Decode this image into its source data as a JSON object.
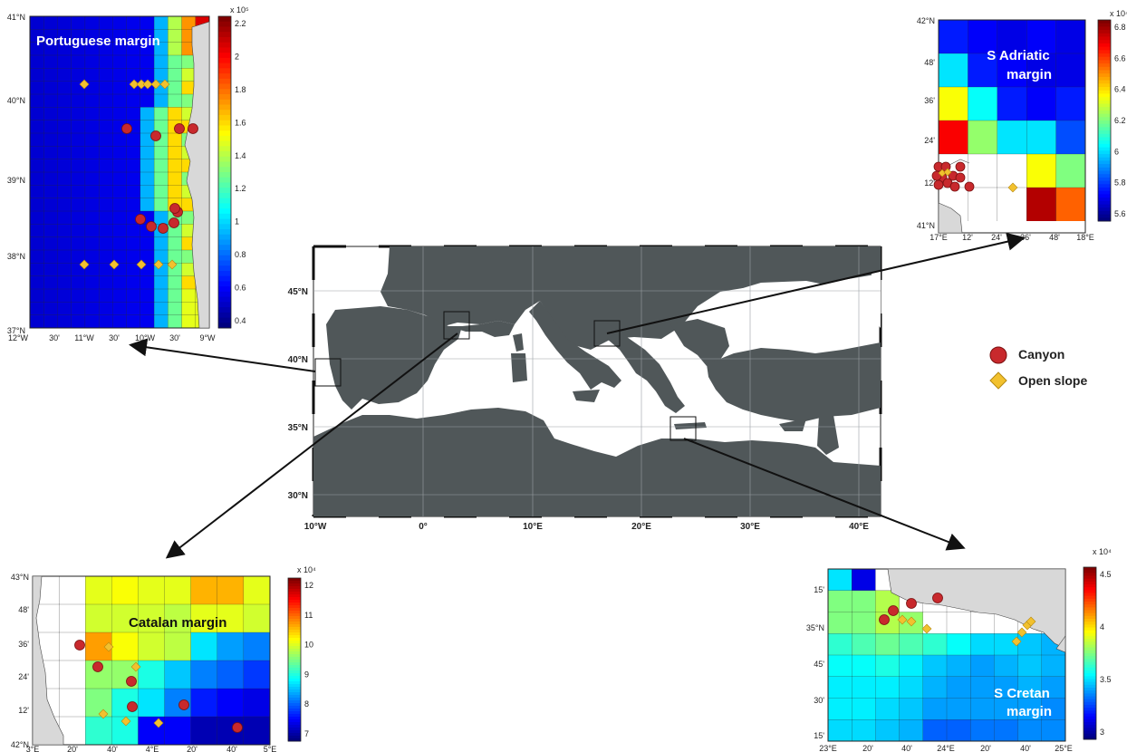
{
  "legend": {
    "canyon": "Canyon",
    "open_slope": "Open slope",
    "canyon_color": "#c8292d",
    "open_slope_color": "#f2c12e"
  },
  "main_map": {
    "land_color": "#505759",
    "lat_labels": [
      "45°N",
      "40°N",
      "35°N",
      "30°N"
    ],
    "lon_labels": [
      "10°W",
      "0°",
      "10°E",
      "20°E",
      "30°E",
      "40°E"
    ]
  },
  "panels": {
    "portuguese": {
      "title": "Portuguese margin",
      "lat_labels": [
        "41°N",
        "40°N",
        "39°N",
        "38°N",
        "37°N"
      ],
      "lon_labels": [
        "12°W",
        "30'",
        "11°W",
        "30'",
        "10°W",
        "30'",
        "9°W"
      ],
      "colorbar_exp": "x 10⁵",
      "colorbar_ticks": [
        "2.2",
        "2",
        "1.8",
        "1.6",
        "1.4",
        "1.2",
        "1",
        "0.8",
        "0.6",
        "0.4"
      ]
    },
    "adriatic": {
      "title_line1": "S Adriatic",
      "title_line2": "margin",
      "lat_labels": [
        "42°N",
        "48'",
        "36'",
        "24'",
        "12'",
        "41°N"
      ],
      "lon_labels": [
        "17°E",
        "12'",
        "24'",
        "36'",
        "48'",
        "18°E"
      ],
      "colorbar_exp": "x 10⁴",
      "colorbar_ticks": [
        "6.8",
        "6.6",
        "6.4",
        "6.2",
        "6",
        "5.8",
        "5.6"
      ]
    },
    "catalan": {
      "title": "Catalan margin",
      "lat_labels": [
        "43°N",
        "48'",
        "36'",
        "24'",
        "12'",
        "42°N"
      ],
      "lon_labels": [
        "3°E",
        "20'",
        "40'",
        "4°E",
        "20'",
        "40'",
        "5°E"
      ],
      "colorbar_exp": "x 10⁴",
      "colorbar_ticks": [
        "12",
        "11",
        "10",
        "9",
        "8",
        "7"
      ]
    },
    "cretan": {
      "title_line1": "S Cretan",
      "title_line2": "margin",
      "lat_labels": [
        "15'",
        "35°N",
        "45'",
        "30'",
        "15'"
      ],
      "lon_labels": [
        "23°E",
        "20'",
        "40'",
        "24°E",
        "20'",
        "40'",
        "25°E"
      ],
      "colorbar_exp": "x 10⁴",
      "colorbar_ticks": [
        "4.5",
        "4",
        "3.5",
        "3"
      ]
    }
  }
}
